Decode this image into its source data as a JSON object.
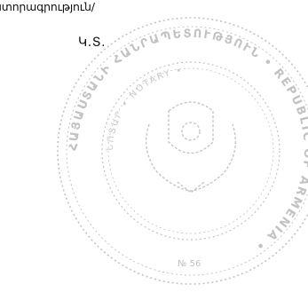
{
  "document": {
    "top_text": "ստորագրություն/",
    "initials": "Կ.Տ."
  },
  "seal": {
    "ring_text": "ՀԱՅԱՍՏԱՆԻ ՀԱՆՐԱՊԵՏՈՒԹՅՈՒՆ • REPUBLIC OF ARMENIA • ",
    "inner_text": "ՆՈՏԱՐ • NOTARY • ",
    "number": "№ 56",
    "color": "#b9b9b9"
  }
}
